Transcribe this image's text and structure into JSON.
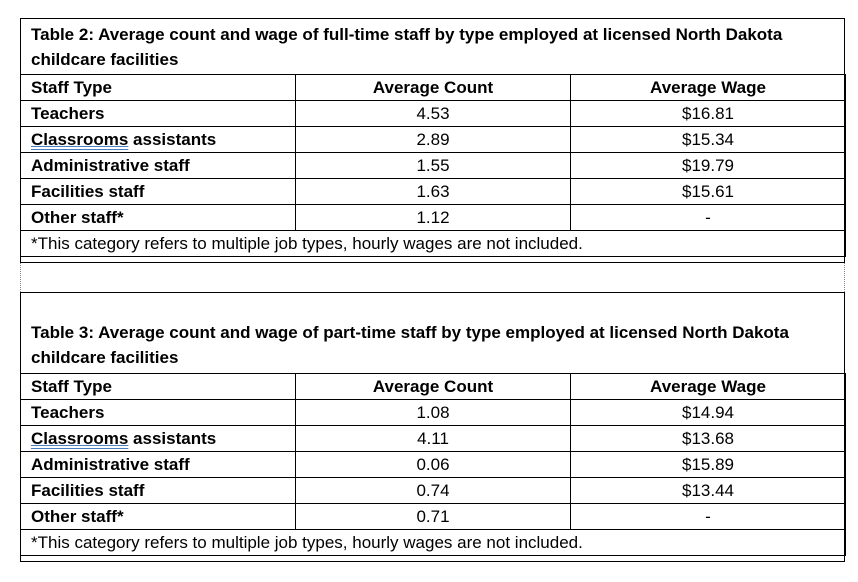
{
  "table2": {
    "caption": "Table 2: Average count and wage of full-time staff by type employed at licensed North Dakota childcare facilities",
    "headers": [
      "Staff Type",
      "Average Count",
      "Average Wage"
    ],
    "rows": [
      {
        "type": "Teachers",
        "count": "4.53",
        "wage": "$16.81"
      },
      {
        "type_a": "Classrooms",
        "type_b": " assistants",
        "count": "2.89",
        "wage": "$15.34"
      },
      {
        "type": "Administrative staff",
        "count": "1.55",
        "wage": "$19.79"
      },
      {
        "type": "Facilities staff",
        "count": "1.63",
        "wage": "$15.61"
      },
      {
        "type": "Other staff*",
        "count": "1.12",
        "wage": "-"
      }
    ],
    "note": "*This category refers to multiple job types, hourly wages are not included."
  },
  "table3": {
    "caption": "Table 3: Average count and wage of part-time staff by type employed at licensed North Dakota childcare facilities",
    "headers": [
      "Staff Type",
      "Average Count",
      "Average Wage"
    ],
    "rows": [
      {
        "type": "Teachers",
        "count": "1.08",
        "wage": "$14.94"
      },
      {
        "type_a": "Classrooms",
        "type_b": " assistants",
        "count": "4.11",
        "wage": "$13.68"
      },
      {
        "type": "Administrative staff",
        "count": "0.06",
        "wage": "$15.89"
      },
      {
        "type": "Facilities staff",
        "count": "0.74",
        "wage": "$13.44"
      },
      {
        "type": "Other staff*",
        "count": "0.71",
        "wage": "-"
      }
    ],
    "note": "*This category refers to multiple job types, hourly wages are not included."
  }
}
